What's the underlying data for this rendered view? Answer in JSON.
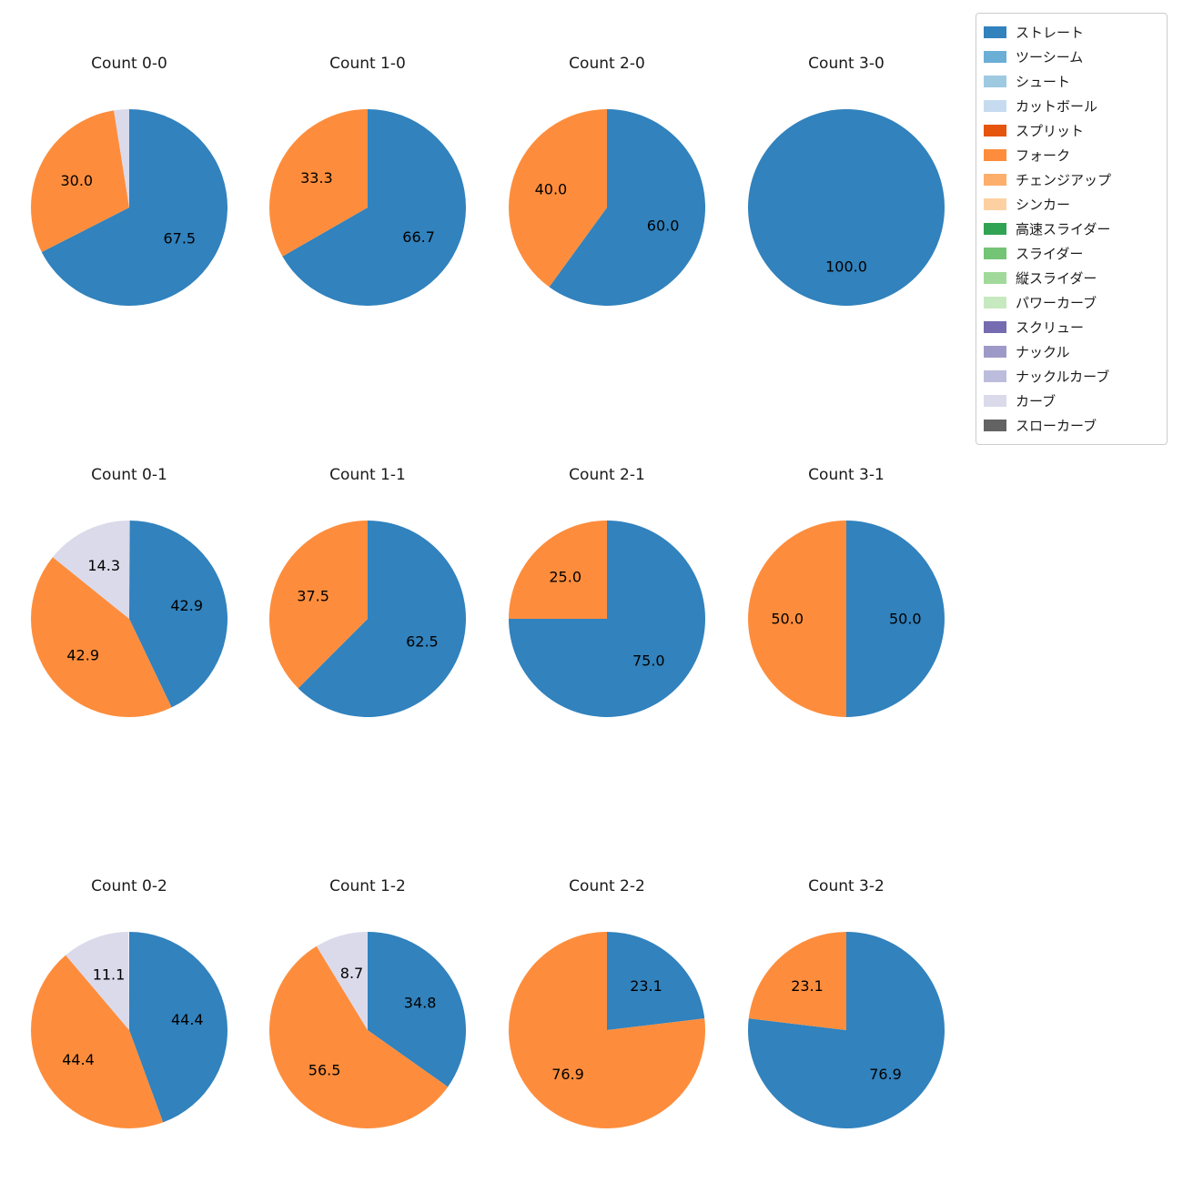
{
  "chart_data": {
    "type": "pie",
    "layout": "4x3 grid of pies, legend top-right",
    "start_angle": 90,
    "direction": "clockwise",
    "unit": "percent",
    "palette": {
      "ストレート": "#3182bd",
      "フォーク": "#fd8d3c",
      "カーブ": "#dadaeb"
    },
    "legend": [
      {
        "label": "ストレート",
        "color": "#3182bd"
      },
      {
        "label": "ツーシーム",
        "color": "#6baed6"
      },
      {
        "label": "シュート",
        "color": "#9ecae1"
      },
      {
        "label": "カットボール",
        "color": "#c6dbef"
      },
      {
        "label": "スプリット",
        "color": "#e6550d"
      },
      {
        "label": "フォーク",
        "color": "#fd8d3c"
      },
      {
        "label": "チェンジアップ",
        "color": "#fdae6b"
      },
      {
        "label": "シンカー",
        "color": "#fdd0a2"
      },
      {
        "label": "高速スライダー",
        "color": "#31a354"
      },
      {
        "label": "スライダー",
        "color": "#74c476"
      },
      {
        "label": "縦スライダー",
        "color": "#a1d99b"
      },
      {
        "label": "パワーカーブ",
        "color": "#c7e9c0"
      },
      {
        "label": "スクリュー",
        "color": "#756bb1"
      },
      {
        "label": "ナックル",
        "color": "#9e9ac8"
      },
      {
        "label": "ナックルカーブ",
        "color": "#bcbddc"
      },
      {
        "label": "カーブ",
        "color": "#dadaeb"
      },
      {
        "label": "スローカーブ",
        "color": "#636363"
      }
    ],
    "charts": [
      {
        "title": "Count 0-0",
        "slices": [
          {
            "name": "ストレート",
            "value": 67.5,
            "label": "67.5"
          },
          {
            "name": "フォーク",
            "value": 30.0,
            "label": "30.0"
          },
          {
            "name": "カーブ",
            "value": 2.5,
            "label": ""
          }
        ]
      },
      {
        "title": "Count 1-0",
        "slices": [
          {
            "name": "ストレート",
            "value": 66.7,
            "label": "66.7"
          },
          {
            "name": "フォーク",
            "value": 33.3,
            "label": "33.3"
          }
        ]
      },
      {
        "title": "Count 2-0",
        "slices": [
          {
            "name": "ストレート",
            "value": 60.0,
            "label": "60.0"
          },
          {
            "name": "フォーク",
            "value": 40.0,
            "label": "40.0"
          }
        ]
      },
      {
        "title": "Count 3-0",
        "slices": [
          {
            "name": "ストレート",
            "value": 100.0,
            "label": "100.0"
          }
        ]
      },
      {
        "title": "Count 0-1",
        "slices": [
          {
            "name": "ストレート",
            "value": 42.9,
            "label": "42.9"
          },
          {
            "name": "フォーク",
            "value": 42.9,
            "label": "42.9"
          },
          {
            "name": "カーブ",
            "value": 14.3,
            "label": "14.3"
          }
        ]
      },
      {
        "title": "Count 1-1",
        "slices": [
          {
            "name": "ストレート",
            "value": 62.5,
            "label": "62.5"
          },
          {
            "name": "フォーク",
            "value": 37.5,
            "label": "37.5"
          }
        ]
      },
      {
        "title": "Count 2-1",
        "slices": [
          {
            "name": "ストレート",
            "value": 75.0,
            "label": "75.0"
          },
          {
            "name": "フォーク",
            "value": 25.0,
            "label": "25.0"
          }
        ]
      },
      {
        "title": "Count 3-1",
        "slices": [
          {
            "name": "ストレート",
            "value": 50.0,
            "label": "50.0"
          },
          {
            "name": "フォーク",
            "value": 50.0,
            "label": "50.0"
          }
        ]
      },
      {
        "title": "Count 0-2",
        "slices": [
          {
            "name": "ストレート",
            "value": 44.4,
            "label": "44.4"
          },
          {
            "name": "フォーク",
            "value": 44.4,
            "label": "44.4"
          },
          {
            "name": "カーブ",
            "value": 11.1,
            "label": "11.1"
          }
        ]
      },
      {
        "title": "Count 1-2",
        "slices": [
          {
            "name": "ストレート",
            "value": 34.8,
            "label": "34.8"
          },
          {
            "name": "フォーク",
            "value": 56.5,
            "label": "56.5"
          },
          {
            "name": "カーブ",
            "value": 8.7,
            "label": "8.7"
          }
        ]
      },
      {
        "title": "Count 2-2",
        "slices": [
          {
            "name": "ストレート",
            "value": 23.1,
            "label": "23.1"
          },
          {
            "name": "フォーク",
            "value": 76.9,
            "label": "76.9"
          }
        ]
      },
      {
        "title": "Count 3-2",
        "slices": [
          {
            "name": "ストレート",
            "value": 76.9,
            "label": "76.9"
          },
          {
            "name": "フォーク",
            "value": 23.1,
            "label": "23.1"
          }
        ]
      }
    ]
  }
}
